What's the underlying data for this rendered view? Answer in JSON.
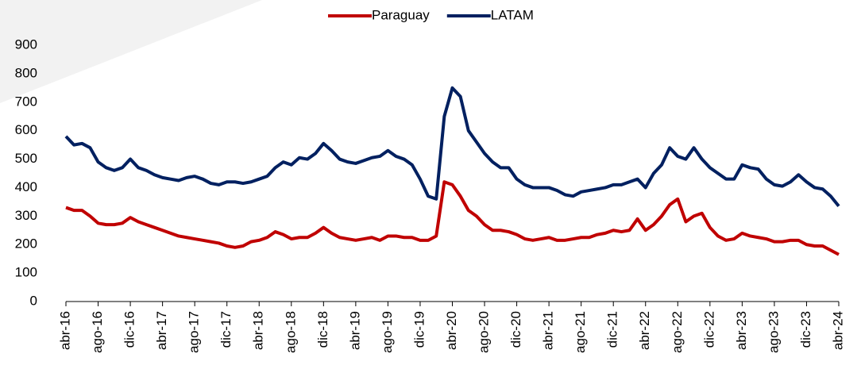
{
  "chart_data": {
    "type": "line",
    "categories": [
      "abr-16",
      null,
      null,
      null,
      "ago-16",
      null,
      null,
      null,
      "dic-16",
      null,
      null,
      null,
      "abr-17",
      null,
      null,
      null,
      "ago-17",
      null,
      null,
      null,
      "dic-17",
      null,
      null,
      null,
      "abr-18",
      null,
      null,
      null,
      "ago-18",
      null,
      null,
      null,
      "dic-18",
      null,
      null,
      null,
      "abr-19",
      null,
      null,
      null,
      "ago-19",
      null,
      null,
      null,
      "dic-19",
      null,
      null,
      null,
      "abr-20",
      null,
      null,
      null,
      "ago-20",
      null,
      null,
      null,
      "dic-20",
      null,
      null,
      null,
      "abr-21",
      null,
      null,
      null,
      "ago-21",
      null,
      null,
      null,
      "dic-21",
      null,
      null,
      null,
      "abr-22",
      null,
      null,
      null,
      "ago-22",
      null,
      null,
      null,
      "dic-22",
      null,
      null,
      null,
      "abr-23",
      null,
      null,
      null,
      "ago-23",
      null,
      null,
      null,
      "dic-23",
      null,
      null,
      null,
      "abr-24"
    ],
    "series": [
      {
        "name": "Paraguay",
        "color": "#c00000",
        "values": [
          330,
          320,
          320,
          300,
          275,
          270,
          270,
          275,
          295,
          280,
          270,
          260,
          250,
          240,
          230,
          225,
          220,
          215,
          210,
          205,
          195,
          190,
          195,
          210,
          215,
          225,
          245,
          235,
          220,
          225,
          225,
          240,
          260,
          240,
          225,
          220,
          215,
          220,
          225,
          215,
          230,
          230,
          225,
          225,
          215,
          215,
          230,
          420,
          410,
          370,
          320,
          300,
          270,
          250,
          250,
          245,
          235,
          220,
          215,
          220,
          225,
          215,
          215,
          220,
          225,
          225,
          235,
          240,
          250,
          245,
          250,
          290,
          250,
          270,
          300,
          340,
          360,
          280,
          300,
          310,
          260,
          230,
          215,
          220,
          240,
          230,
          225,
          220,
          210,
          210,
          215,
          215,
          200,
          195,
          195,
          180,
          165
        ]
      },
      {
        "name": "LATAM",
        "color": "#002060",
        "values": [
          580,
          550,
          555,
          540,
          490,
          470,
          460,
          470,
          500,
          470,
          460,
          445,
          435,
          430,
          425,
          435,
          440,
          430,
          415,
          410,
          420,
          420,
          415,
          420,
          430,
          440,
          470,
          490,
          480,
          505,
          500,
          520,
          555,
          530,
          500,
          490,
          485,
          495,
          505,
          510,
          530,
          510,
          500,
          480,
          430,
          370,
          360,
          650,
          750,
          720,
          600,
          560,
          520,
          490,
          470,
          470,
          430,
          410,
          400,
          400,
          400,
          390,
          375,
          370,
          385,
          390,
          395,
          400,
          410,
          410,
          420,
          430,
          400,
          450,
          480,
          540,
          510,
          500,
          540,
          500,
          470,
          450,
          430,
          430,
          480,
          470,
          465,
          430,
          410,
          405,
          420,
          445,
          420,
          400,
          395,
          370,
          335
        ]
      }
    ],
    "ylim": [
      0,
      900
    ],
    "yticks": [
      0,
      100,
      200,
      300,
      400,
      500,
      600,
      700,
      800,
      900
    ],
    "legend": "top",
    "grid": false
  }
}
